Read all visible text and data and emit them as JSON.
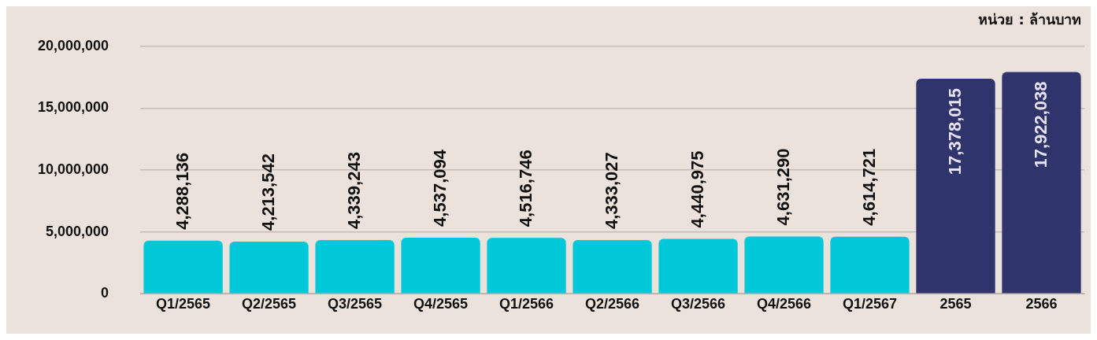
{
  "chart_data": {
    "type": "bar",
    "annotations": [
      "หน่วย : ล้านบาท"
    ],
    "categories": [
      "Q1/2565",
      "Q2/2565",
      "Q3/2565",
      "Q4/2565",
      "Q1/2566",
      "Q2/2566",
      "Q3/2566",
      "Q4/2566",
      "Q1/2567",
      "2565",
      "2566"
    ],
    "values": [
      4288136,
      4213542,
      4339243,
      4537094,
      4516746,
      4333027,
      4440975,
      4631290,
      4614721,
      17378015,
      17922038
    ],
    "colors": [
      "#00c8d8",
      "#00c8d8",
      "#00c8d8",
      "#00c8d8",
      "#00c8d8",
      "#00c8d8",
      "#00c8d8",
      "#00c8d8",
      "#00c8d8",
      "#30346c",
      "#30346c"
    ],
    "value_labels": [
      "4,288,136",
      "4,213,542",
      "4,339,243",
      "4,537,094",
      "4,516,746",
      "4,333,027",
      "4,440,975",
      "4,631,290",
      "4,614,721",
      "17,378,015",
      "17,922,038"
    ],
    "ylim": [
      0,
      20000000
    ],
    "yticks": [
      0,
      {
        "value": 5000000,
        "label": "5,000,000"
      },
      {
        "value": 10000000,
        "label": "10,000,000"
      },
      {
        "value": 15000000,
        "label": "15,000,000"
      },
      {
        "value": 20000000,
        "label": "20,000,000"
      }
    ],
    "grid": "y",
    "legend": false
  }
}
